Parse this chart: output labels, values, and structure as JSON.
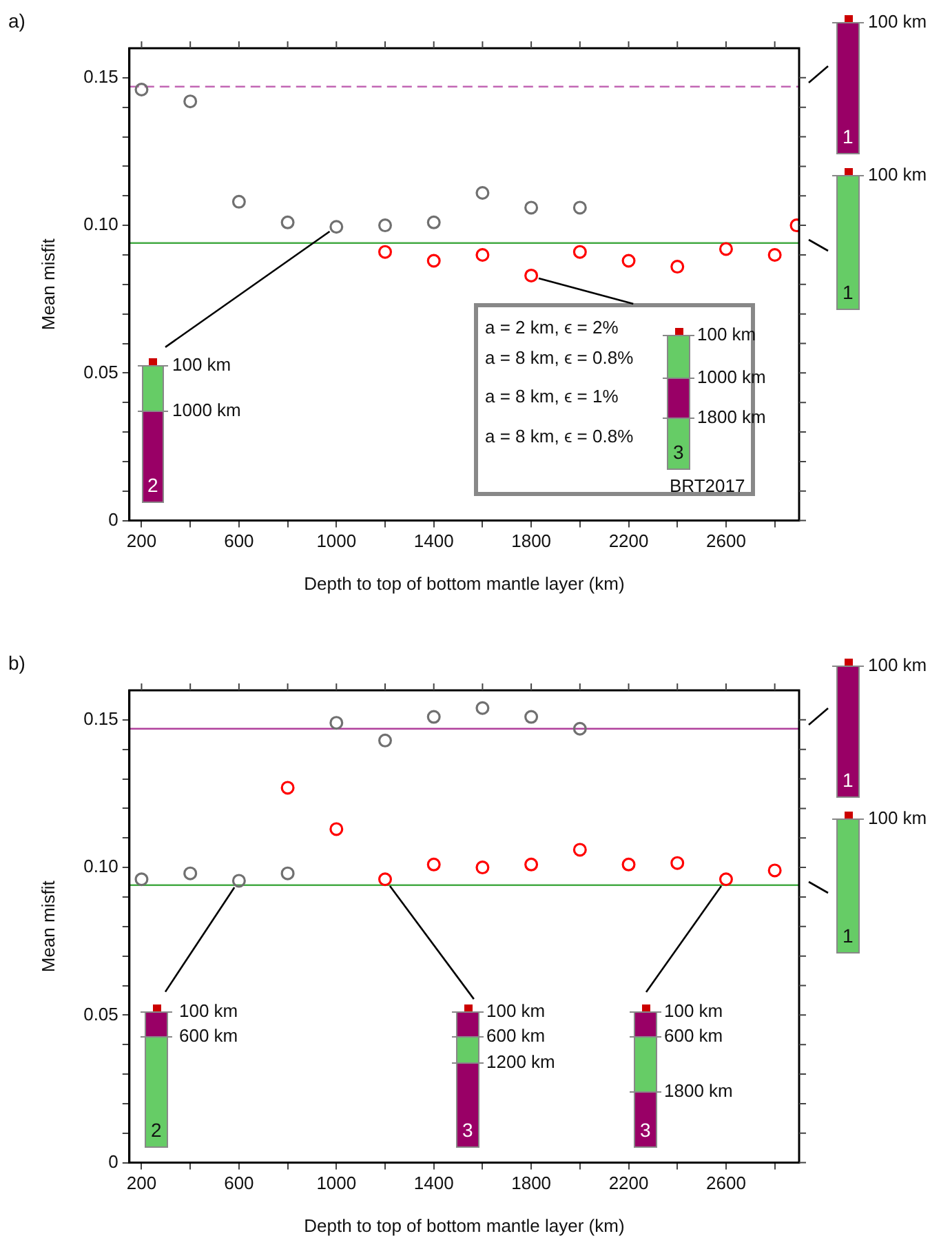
{
  "chart_data": [
    {
      "type": "scatter",
      "title": "a)",
      "xlabel": "Depth to top of bottom mantle layer (km)",
      "ylabel": "Mean misfit",
      "xlim": [
        150,
        2900
      ],
      "ylim": [
        0,
        0.16
      ],
      "xticks": [
        200,
        {
          "value": 400,
          "label": null
        },
        600,
        {
          "value": 800,
          "label": null
        },
        1000,
        {
          "value": 1200,
          "label": null
        },
        1400,
        {
          "value": 1600,
          "label": null
        },
        1800,
        {
          "value": 2000,
          "label": null
        },
        2200,
        {
          "value": 2400,
          "label": null
        },
        2600,
        {
          "value": 2800,
          "label": null
        }
      ],
      "yticks": [
        0,
        {
          "value": 0.01,
          "label": null
        },
        {
          "value": 0.02,
          "label": null
        },
        {
          "value": 0.03,
          "label": null
        },
        {
          "value": 0.04,
          "label": null
        },
        0.05,
        {
          "value": 0.06,
          "label": null
        },
        {
          "value": 0.07,
          "label": null
        },
        {
          "value": 0.08,
          "label": null
        },
        {
          "value": 0.09,
          "label": null
        },
        {
          "value": 0.1,
          "label": "0.10"
        },
        {
          "value": 0.11,
          "label": null
        },
        {
          "value": 0.12,
          "label": null
        },
        {
          "value": 0.13,
          "label": null
        },
        {
          "value": 0.14,
          "label": null
        },
        0.15
      ],
      "grid": false,
      "legend": false,
      "marker": "circle",
      "series": [
        {
          "color": "#707070",
          "x": [
            200,
            400,
            600,
            800,
            1000,
            1200,
            1400,
            1600,
            1800,
            2000
          ],
          "values": [
            0.146,
            0.142,
            0.108,
            0.101,
            0.0995,
            0.1,
            0.101,
            0.111,
            0.106,
            0.106
          ]
        },
        {
          "color": "#ff0000",
          "x": [
            1200,
            1400,
            1600,
            1800,
            2000,
            2200,
            2400,
            2600,
            2800,
            2890
          ],
          "values": [
            0.091,
            0.088,
            0.09,
            0.083,
            0.091,
            0.088,
            0.086,
            0.092,
            0.09,
            0.1
          ]
        }
      ],
      "ref_lines": [
        {
          "axis": "y",
          "value": 0.147,
          "color": "#c266b4",
          "line_style": "dashed"
        },
        {
          "axis": "y",
          "value": 0.094,
          "color": "#44aa44",
          "line_style": "solid"
        }
      ],
      "annotations": [
        {
          "text": "100 km",
          "x": 1000,
          "y": 0.0995
        },
        "1000 km",
        "2",
        {
          "text": "a = 2 km, ϵ = 2%",
          "x": 1800,
          "y": 0.083
        },
        "a = 8 km, ϵ = 0.8%",
        "a = 8 km, ϵ = 1%",
        "a = 8 km, ϵ = 0.8%",
        "100 km",
        "1000 km",
        "1800 km",
        "3",
        "BRT2017",
        "100 km",
        "1",
        "100 km",
        "1"
      ]
    },
    {
      "type": "scatter",
      "title": "b)",
      "xlabel": "Depth to top of bottom mantle layer (km)",
      "ylabel": "Mean misfit",
      "xlim": [
        150,
        2900
      ],
      "ylim": [
        0,
        0.16
      ],
      "xticks": [
        200,
        {
          "value": 400,
          "label": null
        },
        600,
        {
          "value": 800,
          "label": null
        },
        1000,
        {
          "value": 1200,
          "label": null
        },
        1400,
        {
          "value": 1600,
          "label": null
        },
        1800,
        {
          "value": 2000,
          "label": null
        },
        2200,
        {
          "value": 2400,
          "label": null
        },
        2600,
        {
          "value": 2800,
          "label": null
        }
      ],
      "yticks": [
        0,
        {
          "value": 0.01,
          "label": null
        },
        {
          "value": 0.02,
          "label": null
        },
        {
          "value": 0.03,
          "label": null
        },
        {
          "value": 0.04,
          "label": null
        },
        0.05,
        {
          "value": 0.06,
          "label": null
        },
        {
          "value": 0.07,
          "label": null
        },
        {
          "value": 0.08,
          "label": null
        },
        {
          "value": 0.09,
          "label": null
        },
        {
          "value": 0.1,
          "label": "0.10"
        },
        {
          "value": 0.11,
          "label": null
        },
        {
          "value": 0.12,
          "label": null
        },
        {
          "value": 0.13,
          "label": null
        },
        {
          "value": 0.14,
          "label": null
        },
        0.15
      ],
      "grid": false,
      "legend": false,
      "marker": "circle",
      "series": [
        {
          "color": "#707070",
          "x": [
            200,
            400,
            600,
            800,
            1000,
            1200,
            1400,
            1600,
            1800,
            2000
          ],
          "values": [
            0.096,
            0.098,
            0.0955,
            0.098,
            0.149,
            0.143,
            0.151,
            0.154,
            0.151,
            0.147
          ]
        },
        {
          "color": "#ff0000",
          "x": [
            800,
            1000,
            1200,
            1400,
            1600,
            1800,
            2000,
            2200,
            2400,
            2600,
            2800
          ],
          "values": [
            0.127,
            0.113,
            0.096,
            0.101,
            0.1,
            0.101,
            0.106,
            0.101,
            0.1015,
            0.096,
            0.099
          ]
        }
      ],
      "ref_lines": [
        {
          "axis": "y",
          "value": 0.147,
          "color": "#b0409c",
          "line_style": "solid"
        },
        {
          "axis": "y",
          "value": 0.094,
          "color": "#44aa44",
          "line_style": "solid"
        }
      ],
      "annotations": [
        {
          "text": "100 km",
          "x": 600,
          "y": 0.0955
        },
        "600 km",
        "2",
        {
          "text": "100 km",
          "x": 1200,
          "y": 0.096
        },
        "600 km",
        "1200 km",
        "3",
        {
          "text": "100 km",
          "x": 2600,
          "y": 0.096
        },
        "600 km",
        "1800 km",
        "3",
        "100 km",
        "1",
        "100 km",
        "1"
      ]
    }
  ]
}
